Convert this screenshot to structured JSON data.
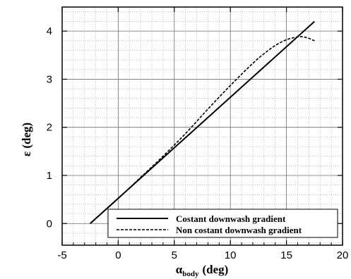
{
  "chart_data": {
    "type": "line",
    "title": "",
    "xlabel": {
      "symbol": "α",
      "subscript": "body",
      "unit": "(deg)"
    },
    "ylabel": "ε (deg)",
    "xlim": [
      -5,
      20
    ],
    "ylim": [
      -0.45,
      4.5
    ],
    "xticks": [
      -5,
      0,
      5,
      10,
      15,
      20
    ],
    "yticks": [
      0,
      1,
      2,
      3,
      4
    ],
    "xtick_labels": [
      "-5",
      "0",
      "5",
      "10",
      "15",
      "20"
    ],
    "ytick_labels": [
      "0",
      "1",
      "2",
      "3",
      "4"
    ],
    "grid": {
      "major": true,
      "minor": true,
      "minor_style": "dotted"
    },
    "legend_position": "bottom-right",
    "series": [
      {
        "name": "Costant downwash gradient",
        "style": "solid",
        "x": [
          -2.5,
          17.5
        ],
        "y": [
          0.0,
          4.2
        ]
      },
      {
        "name": "Non costant downwash gradient",
        "style": "dashed",
        "x": [
          -2.5,
          0,
          2,
          4,
          6,
          8,
          10,
          12,
          13,
          14,
          15,
          16,
          16.5,
          17,
          17.5
        ],
        "y": [
          0.0,
          0.52,
          0.96,
          1.4,
          1.87,
          2.38,
          2.87,
          3.33,
          3.53,
          3.7,
          3.82,
          3.88,
          3.88,
          3.85,
          3.8
        ]
      }
    ]
  }
}
